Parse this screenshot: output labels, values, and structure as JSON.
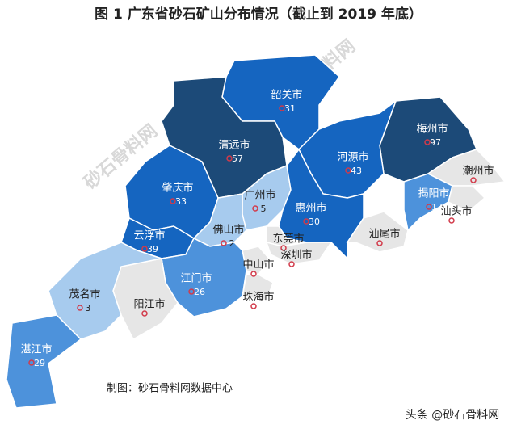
{
  "map": {
    "title": "图 1  广东省砂石矿山分布情况（截止到 2019 年底）",
    "source": "制图：砂石骨料网数据中心",
    "watermark": "头条 @砂石骨料网",
    "background_mark": "砂石骨料网",
    "border_color": "#ffffff",
    "regions": [
      {
        "name": "韶关市",
        "value": 31,
        "color": "#1565c0"
      },
      {
        "name": "清远市",
        "value": 57,
        "color": "#1c4a78"
      },
      {
        "name": "梅州市",
        "value": 97,
        "color": "#1c4a78"
      },
      {
        "name": "河源市",
        "value": 43,
        "color": "#1565c0"
      },
      {
        "name": "肇庆市",
        "value": 33,
        "color": "#1565c0"
      },
      {
        "name": "广州市",
        "value": 5,
        "color": "#a7cbee"
      },
      {
        "name": "惠州市",
        "value": 30,
        "color": "#1565c0"
      },
      {
        "name": "揭阳市",
        "value": 17,
        "color": "#4d92db"
      },
      {
        "name": "潮州市",
        "value": null,
        "color": "#e6e6e6"
      },
      {
        "name": "汕头市",
        "value": null,
        "color": "#e6e6e6"
      },
      {
        "name": "汕尾市",
        "value": null,
        "color": "#e6e6e6"
      },
      {
        "name": "云浮市",
        "value": 39,
        "color": "#1565c0"
      },
      {
        "name": "佛山市",
        "value": 2,
        "color": "#a7cbee"
      },
      {
        "name": "东莞市",
        "value": null,
        "color": "#e6e6e6"
      },
      {
        "name": "深圳市",
        "value": null,
        "color": "#e6e6e6"
      },
      {
        "name": "中山市",
        "value": null,
        "color": "#e6e6e6"
      },
      {
        "name": "珠海市",
        "value": null,
        "color": "#e6e6e6"
      },
      {
        "name": "江门市",
        "value": 26,
        "color": "#4d92db"
      },
      {
        "name": "阳江市",
        "value": null,
        "color": "#e6e6e6"
      },
      {
        "name": "茂名市",
        "value": 3,
        "color": "#a7cbee"
      },
      {
        "name": "湛江市",
        "value": 29,
        "color": "#4d92db"
      }
    ]
  }
}
